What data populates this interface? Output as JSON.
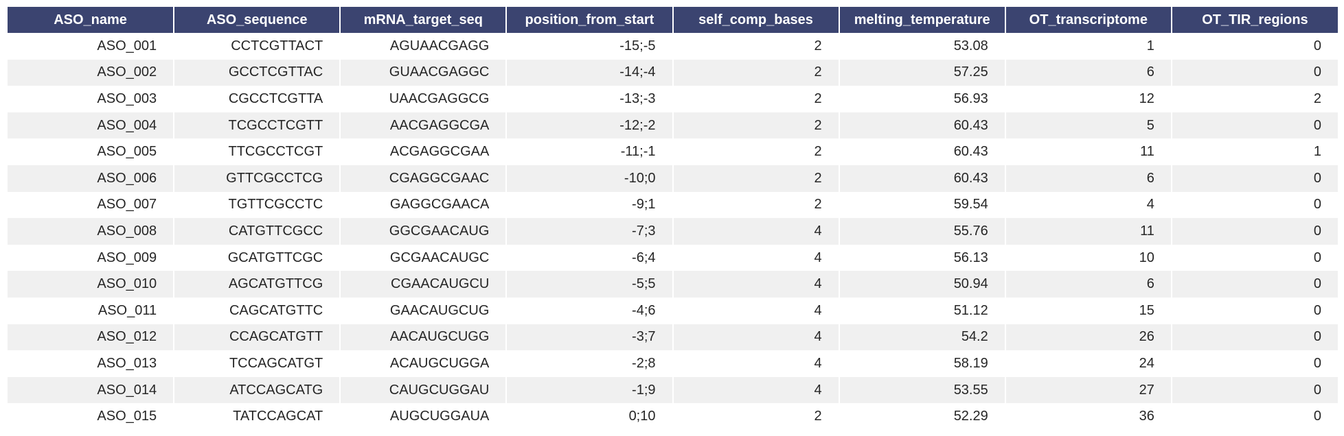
{
  "table": {
    "columns": [
      "ASO_name",
      "ASO_sequence",
      "mRNA_target_seq",
      "position_from_start",
      "self_comp_bases",
      "melting_temperature",
      "OT_transcriptome",
      "OT_TIR_regions"
    ],
    "rows": [
      [
        "ASO_001",
        "CCTCGTTACT",
        "AGUAACGAGG",
        "-15;-5",
        "2",
        "53.08",
        "1",
        "0"
      ],
      [
        "ASO_002",
        "GCCTCGTTAC",
        "GUAACGAGGC",
        "-14;-4",
        "2",
        "57.25",
        "6",
        "0"
      ],
      [
        "ASO_003",
        "CGCCTCGTTA",
        "UAACGAGGCG",
        "-13;-3",
        "2",
        "56.93",
        "12",
        "2"
      ],
      [
        "ASO_004",
        "TCGCCTCGTT",
        "AACGAGGCGA",
        "-12;-2",
        "2",
        "60.43",
        "5",
        "0"
      ],
      [
        "ASO_005",
        "TTCGCCTCGT",
        "ACGAGGCGAA",
        "-11;-1",
        "2",
        "60.43",
        "11",
        "1"
      ],
      [
        "ASO_006",
        "GTTCGCCTCG",
        "CGAGGCGAAC",
        "-10;0",
        "2",
        "60.43",
        "6",
        "0"
      ],
      [
        "ASO_007",
        "TGTTCGCCTC",
        "GAGGCGAACA",
        "-9;1",
        "2",
        "59.54",
        "4",
        "0"
      ],
      [
        "ASO_008",
        "CATGTTCGCC",
        "GGCGAACAUG",
        "-7;3",
        "4",
        "55.76",
        "11",
        "0"
      ],
      [
        "ASO_009",
        "GCATGTTCGC",
        "GCGAACAUGC",
        "-6;4",
        "4",
        "56.13",
        "10",
        "0"
      ],
      [
        "ASO_010",
        "AGCATGTTCG",
        "CGAACAUGCU",
        "-5;5",
        "4",
        "50.94",
        "6",
        "0"
      ],
      [
        "ASO_011",
        "CAGCATGTTC",
        "GAACAUGCUG",
        "-4;6",
        "4",
        "51.12",
        "15",
        "0"
      ],
      [
        "ASO_012",
        "CCAGCATGTT",
        "AACAUGCUGG",
        "-3;7",
        "4",
        "54.2",
        "26",
        "0"
      ],
      [
        "ASO_013",
        "TCCAGCATGT",
        "ACAUGCUGGA",
        "-2;8",
        "4",
        "58.19",
        "24",
        "0"
      ],
      [
        "ASO_014",
        "ATCCAGCATG",
        "CAUGCUGGAU",
        "-1;9",
        "4",
        "53.55",
        "27",
        "0"
      ],
      [
        "ASO_015",
        "TATCCAGCAT",
        "AUGCUGGAUA",
        "0;10",
        "2",
        "52.29",
        "36",
        "0"
      ]
    ]
  },
  "colors": {
    "header_background": "#3b4470",
    "header_text": "#ffffff",
    "row_stripe": "#f0f0f0",
    "cell_text": "#262626"
  }
}
